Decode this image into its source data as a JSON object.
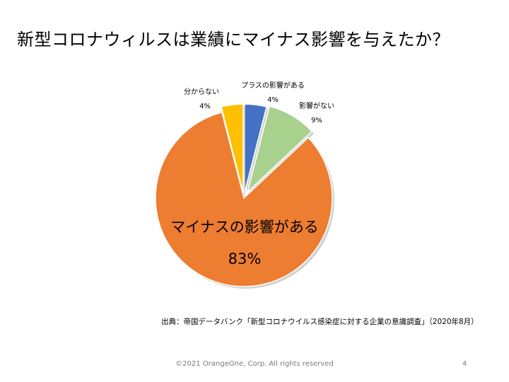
{
  "slide": {
    "title": "新型コロナウィルスは業績にマイナス影響を与えたか？",
    "source_note": "出典：帝国データバンク「新型コロナウイルス感染症に対する企業の意識調査」（2020年8月）",
    "footer_copyright": "©2021 OrangeOne, Corp. All rights reserved",
    "page_number": "4"
  },
  "chart_data": {
    "type": "pie",
    "title": "",
    "slices": [
      {
        "name": "プラスの影響がある",
        "value": 4,
        "label": "4%",
        "color": "#4472c4"
      },
      {
        "name": "影響がない",
        "value": 9,
        "label": "9%",
        "color": "#a9d18e"
      },
      {
        "name": "マイナスの影響がある",
        "value": 83,
        "label": "83%",
        "color": "#ed7d31"
      },
      {
        "name": "分からない",
        "value": 4,
        "label": "4%",
        "color": "#ffc000"
      }
    ],
    "legend": "none"
  }
}
